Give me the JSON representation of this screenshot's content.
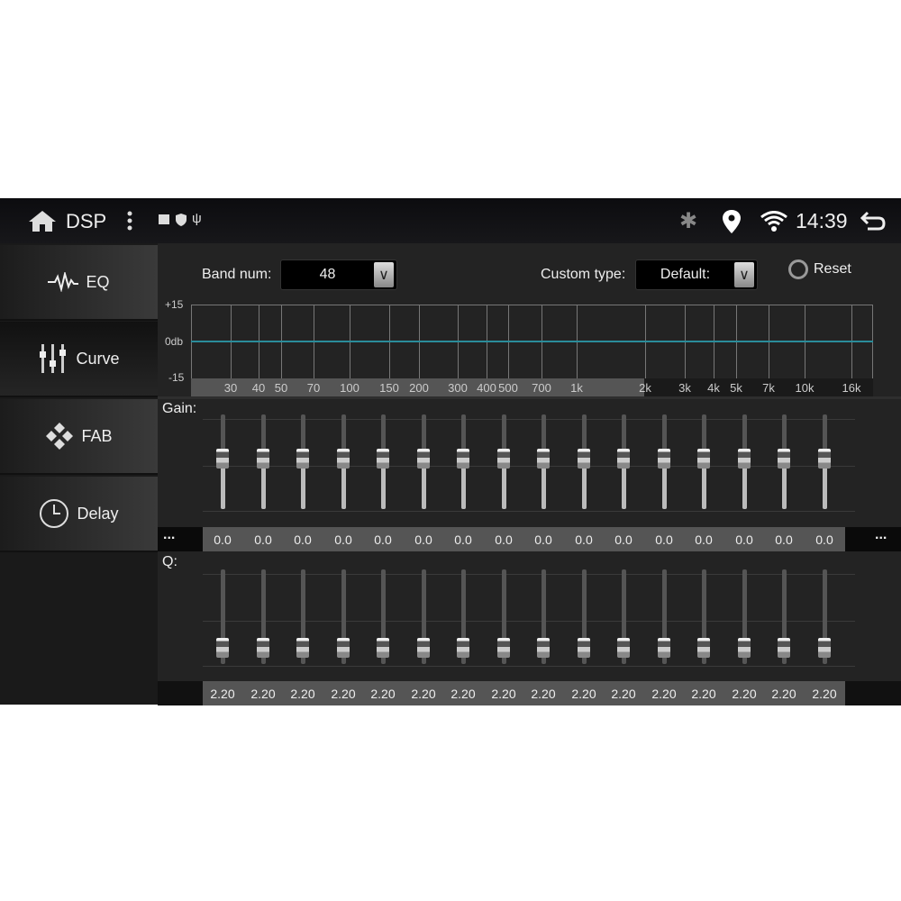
{
  "status": {
    "title": "DSP",
    "time": "14:39",
    "icons": [
      "home-icon",
      "more-vert-icon",
      "image-icon",
      "shield-play-icon",
      "usb-icon",
      "bluetooth-icon",
      "location-icon",
      "wifi-icon",
      "back-icon"
    ]
  },
  "sidebar": {
    "items": [
      {
        "label": "EQ",
        "icon": "waveform-icon"
      },
      {
        "label": "Curve",
        "icon": "sliders-icon",
        "selected": true
      },
      {
        "label": "FAB",
        "icon": "fader-balance-icon"
      },
      {
        "label": "Delay",
        "icon": "clock-icon"
      }
    ]
  },
  "controls": {
    "band_label": "Band num:",
    "band_value": "48",
    "custom_label": "Custom type:",
    "custom_value": "Default:",
    "reset_label": "Reset"
  },
  "graph": {
    "y_labels": [
      "+15",
      "0db",
      "-15"
    ],
    "freq_labels": [
      "30",
      "40",
      "50",
      "70",
      "100",
      "150",
      "200",
      "300",
      "400",
      "500",
      "700",
      "1k",
      "2k",
      "3k",
      "4k",
      "5k",
      "7k",
      "10k",
      "16k"
    ],
    "curve_color": "#2a8c9a"
  },
  "gain": {
    "label": "Gain:",
    "values": [
      "0.0",
      "0.0",
      "0.0",
      "0.0",
      "0.0",
      "0.0",
      "0.0",
      "0.0",
      "0.0",
      "0.0",
      "0.0",
      "0.0",
      "0.0",
      "0.0",
      "0.0",
      "0.0"
    ],
    "more": "..."
  },
  "q": {
    "label": "Q:",
    "values": [
      "2.20",
      "2.20",
      "2.20",
      "2.20",
      "2.20",
      "2.20",
      "2.20",
      "2.20",
      "2.20",
      "2.20",
      "2.20",
      "2.20",
      "2.20",
      "2.20",
      "2.20",
      "2.20"
    ]
  }
}
